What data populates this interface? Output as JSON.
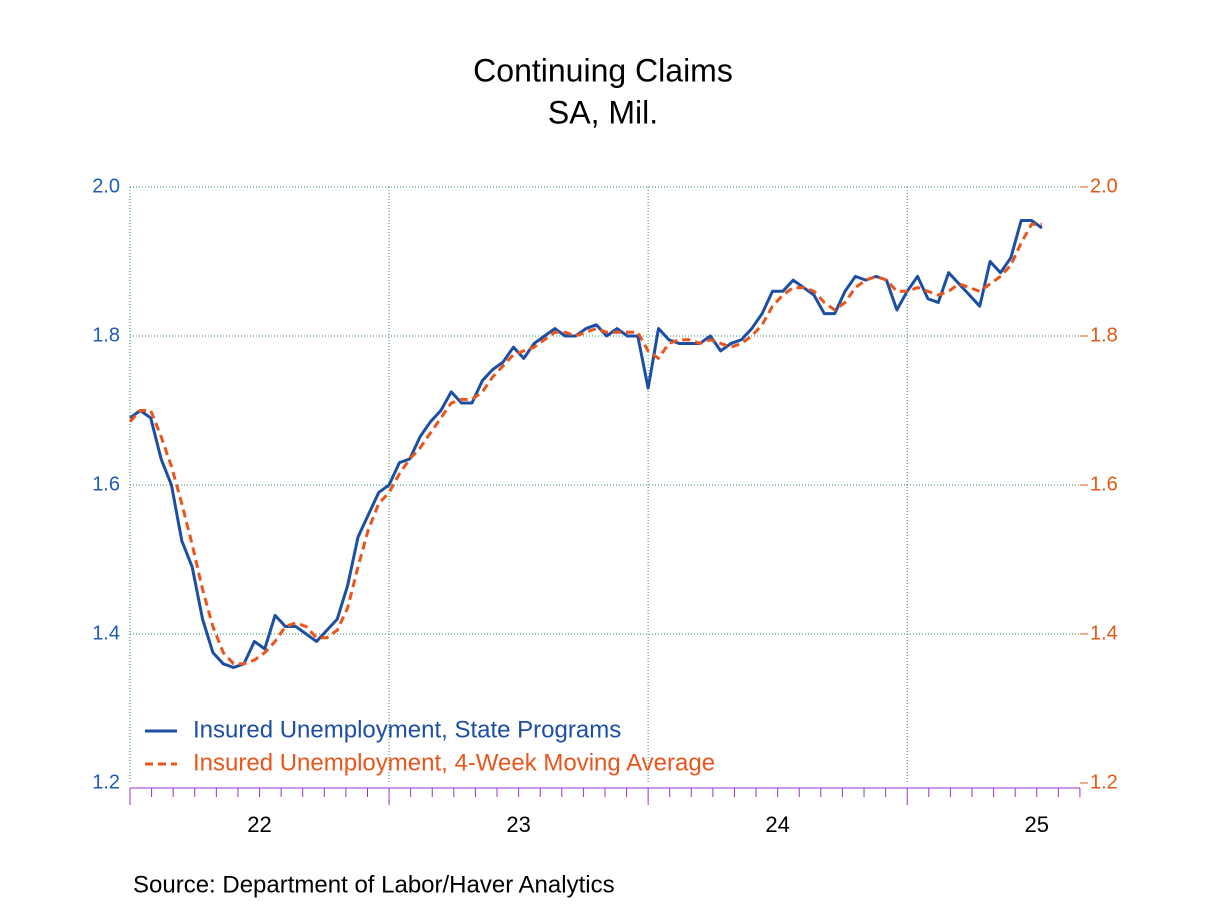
{
  "chart_data": {
    "type": "line",
    "title": "Continuing Claims",
    "subtitle": "SA, Mil.",
    "source": "Source:  Department of Labor/Haver Analytics",
    "x": [
      2022.0,
      2022.04,
      2022.08,
      2022.12,
      2022.16,
      2022.2,
      2022.24,
      2022.28,
      2022.32,
      2022.36,
      2022.4,
      2022.44,
      2022.48,
      2022.52,
      2022.56,
      2022.6,
      2022.64,
      2022.68,
      2022.72,
      2022.76,
      2022.8,
      2022.84,
      2022.88,
      2022.92,
      2022.96,
      2023.0,
      2023.04,
      2023.08,
      2023.12,
      2023.16,
      2023.2,
      2023.24,
      2023.28,
      2023.32,
      2023.36,
      2023.4,
      2023.44,
      2023.48,
      2023.52,
      2023.56,
      2023.6,
      2023.64,
      2023.68,
      2023.72,
      2023.76,
      2023.8,
      2023.84,
      2023.88,
      2023.92,
      2023.96,
      2024.0,
      2024.04,
      2024.08,
      2024.12,
      2024.16,
      2024.2,
      2024.24,
      2024.28,
      2024.32,
      2024.36,
      2024.4,
      2024.44,
      2024.48,
      2024.52,
      2024.56,
      2024.6,
      2024.64,
      2024.68,
      2024.72,
      2024.76,
      2024.8,
      2024.84,
      2024.88,
      2024.92,
      2024.96,
      2025.0,
      2025.04,
      2025.08,
      2025.12,
      2025.16,
      2025.2,
      2025.24,
      2025.28,
      2025.32,
      2025.36,
      2025.4,
      2025.44,
      2025.48,
      2025.52
    ],
    "series": [
      {
        "name": "Insured Unemployment, State Programs",
        "color": "#1c4fa3",
        "dash": false,
        "values": [
          1.69,
          1.7,
          1.69,
          1.635,
          1.6,
          1.525,
          1.49,
          1.42,
          1.375,
          1.36,
          1.355,
          1.36,
          1.39,
          1.38,
          1.425,
          1.41,
          1.41,
          1.4,
          1.39,
          1.405,
          1.42,
          1.465,
          1.53,
          1.56,
          1.59,
          1.6,
          1.63,
          1.635,
          1.665,
          1.685,
          1.7,
          1.725,
          1.71,
          1.71,
          1.74,
          1.755,
          1.765,
          1.785,
          1.77,
          1.79,
          1.8,
          1.81,
          1.8,
          1.8,
          1.81,
          1.815,
          1.8,
          1.81,
          1.8,
          1.8,
          1.73,
          1.81,
          1.795,
          1.79,
          1.79,
          1.79,
          1.8,
          1.78,
          1.79,
          1.795,
          1.81,
          1.83,
          1.86,
          1.86,
          1.875,
          1.865,
          1.855,
          1.83,
          1.83,
          1.86,
          1.88,
          1.875,
          1.88,
          1.875,
          1.835,
          1.86,
          1.88,
          1.85,
          1.845,
          1.885,
          1.87,
          1.855,
          1.84,
          1.9,
          1.885,
          1.905,
          1.955,
          1.955,
          1.945
        ]
      },
      {
        "name": "Insured Unemployment, 4-Week Moving Average",
        "color": "#e8561c",
        "dash": true,
        "axis": "y2",
        "values": [
          1.685,
          1.7,
          1.7,
          1.665,
          1.625,
          1.575,
          1.52,
          1.46,
          1.41,
          1.375,
          1.36,
          1.36,
          1.365,
          1.375,
          1.39,
          1.41,
          1.415,
          1.41,
          1.395,
          1.395,
          1.405,
          1.435,
          1.49,
          1.54,
          1.575,
          1.59,
          1.615,
          1.635,
          1.65,
          1.67,
          1.69,
          1.71,
          1.715,
          1.715,
          1.725,
          1.745,
          1.76,
          1.775,
          1.78,
          1.785,
          1.795,
          1.805,
          1.805,
          1.8,
          1.805,
          1.81,
          1.805,
          1.805,
          1.805,
          1.805,
          1.78,
          1.77,
          1.79,
          1.795,
          1.795,
          1.79,
          1.795,
          1.79,
          1.785,
          1.79,
          1.8,
          1.815,
          1.84,
          1.855,
          1.865,
          1.865,
          1.86,
          1.845,
          1.835,
          1.845,
          1.865,
          1.875,
          1.88,
          1.875,
          1.86,
          1.86,
          1.865,
          1.86,
          1.855,
          1.86,
          1.87,
          1.865,
          1.86,
          1.87,
          1.88,
          1.895,
          1.925,
          1.95,
          1.95
        ]
      }
    ],
    "xlim": [
      2022,
      2025.667
    ],
    "xticks": [
      {
        "value": 2022.5,
        "label": "22"
      },
      {
        "value": 2023.5,
        "label": "23"
      },
      {
        "value": 2024.5,
        "label": "24"
      },
      {
        "value": 2025.5,
        "label": "25"
      }
    ],
    "ylim": [
      1.2,
      2.0
    ],
    "yticks": [
      1.2,
      1.4,
      1.6,
      1.8,
      {
        "value": 2.0,
        "label": "2.0"
      }
    ],
    "y2lim": [
      1.2,
      2.0
    ],
    "y2ticks": [
      1.2,
      1.4,
      1.6,
      1.8,
      {
        "value": 2.0,
        "label": "2.0"
      }
    ],
    "y_color": "#1f5cb3",
    "y2_color": "#e05a12",
    "axis_color": "#9b30c8",
    "grid": true,
    "legend": "lower left"
  }
}
